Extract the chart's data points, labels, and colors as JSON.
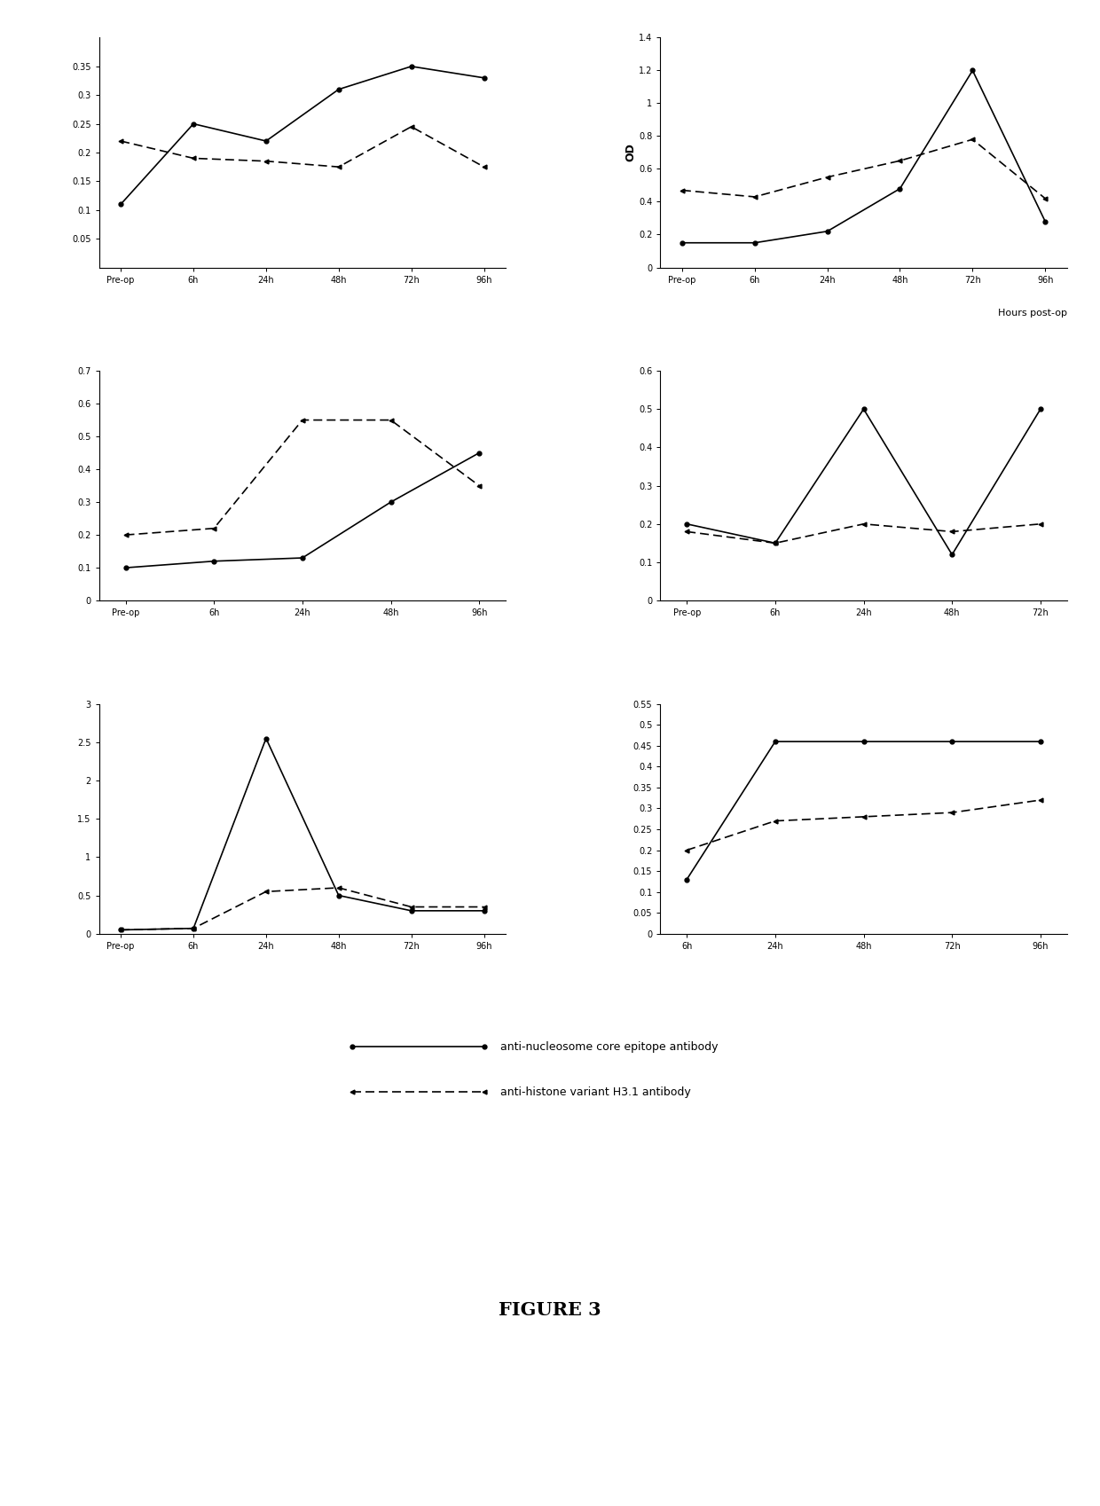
{
  "subplot1": {
    "xticklabels": [
      "Pre-op",
      "6h",
      "24h",
      "48h",
      "72h",
      "96h"
    ],
    "solid": [
      0.11,
      0.25,
      0.22,
      0.31,
      0.35,
      0.33
    ],
    "dashed": [
      0.22,
      0.19,
      0.185,
      0.175,
      0.245,
      0.175
    ],
    "ylim": [
      0,
      0.4
    ],
    "yticks": [
      0.05,
      0.1,
      0.15,
      0.2,
      0.25,
      0.3,
      0.35
    ],
    "ytick_labels": [
      "0.05",
      "0.1",
      "0.15",
      "0.2",
      "0.25",
      "0.3",
      "0.35"
    ]
  },
  "subplot2": {
    "xticklabels": [
      "Pre-op",
      "6h",
      "24h",
      "48h",
      "72h",
      "96h"
    ],
    "solid": [
      0.15,
      0.15,
      0.22,
      0.48,
      1.2,
      0.28
    ],
    "dashed": [
      0.47,
      0.43,
      0.55,
      0.65,
      0.78,
      0.42
    ],
    "ylim": [
      0,
      1.4
    ],
    "yticks": [
      0.0,
      0.2,
      0.4,
      0.6,
      0.8,
      1.0,
      1.2,
      1.4
    ],
    "ytick_labels": [
      "0",
      "0.2",
      "0.4",
      "0.6",
      "0.8",
      "1",
      "1.2",
      "1.4"
    ],
    "ylabel": "OD",
    "xlabel": "Hours post-op"
  },
  "subplot3": {
    "xticklabels": [
      "Pre-op",
      "6h",
      "24h",
      "48h",
      "96h"
    ],
    "solid": [
      0.1,
      0.12,
      0.13,
      0.3,
      0.45
    ],
    "dashed": [
      0.2,
      0.22,
      0.55,
      0.55,
      0.35
    ],
    "ylim": [
      0,
      0.7
    ],
    "yticks": [
      0.0,
      0.1,
      0.2,
      0.3,
      0.4,
      0.5,
      0.6,
      0.7
    ],
    "ytick_labels": [
      "0",
      "0.1",
      "0.2",
      "0.3",
      "0.4",
      "0.5",
      "0.6",
      "0.7"
    ]
  },
  "subplot4": {
    "xticklabels": [
      "Pre-op",
      "6h",
      "24h",
      "48h",
      "72h"
    ],
    "solid": [
      0.2,
      0.15,
      0.5,
      0.12,
      0.5
    ],
    "dashed": [
      0.18,
      0.15,
      0.2,
      0.18,
      0.2
    ],
    "ylim": [
      0,
      0.6
    ],
    "yticks": [
      0.0,
      0.1,
      0.2,
      0.3,
      0.4,
      0.5,
      0.6
    ],
    "ytick_labels": [
      "0",
      "0.1",
      "0.2",
      "0.3",
      "0.4",
      "0.5",
      "0.6"
    ]
  },
  "subplot5": {
    "xticklabels": [
      "Pre-op",
      "6h",
      "24h",
      "48h",
      "72h",
      "96h"
    ],
    "solid": [
      0.05,
      0.07,
      2.55,
      0.5,
      0.3,
      0.3
    ],
    "dashed": [
      0.05,
      0.07,
      0.55,
      0.6,
      0.35,
      0.35
    ],
    "ylim": [
      0,
      3.0
    ],
    "yticks": [
      0.0,
      0.5,
      1.0,
      1.5,
      2.0,
      2.5,
      3.0
    ],
    "ytick_labels": [
      "0",
      "0.5",
      "1",
      "1.5",
      "2",
      "2.5",
      "3"
    ]
  },
  "subplot6": {
    "xticklabels": [
      "6h",
      "24h",
      "48h",
      "72h",
      "96h"
    ],
    "solid": [
      0.13,
      0.46,
      0.46,
      0.46,
      0.46
    ],
    "dashed": [
      0.2,
      0.27,
      0.28,
      0.29,
      0.32
    ],
    "ylim": [
      0,
      0.55
    ],
    "yticks": [
      0.0,
      0.05,
      0.1,
      0.15,
      0.2,
      0.25,
      0.3,
      0.35,
      0.4,
      0.45,
      0.5,
      0.55
    ],
    "ytick_labels": [
      "0",
      "0.05",
      "0.1",
      "0.15",
      "0.2",
      "0.25",
      "0.3",
      "0.35",
      "0.4",
      "0.45",
      "0.5",
      "0.55"
    ]
  },
  "legend": {
    "solid_label": "anti-nucleosome core epitope antibody",
    "dashed_label": "anti-histone variant H3.1 antibody"
  },
  "figure_label": "FIGURE 3",
  "background_color": "#ffffff"
}
